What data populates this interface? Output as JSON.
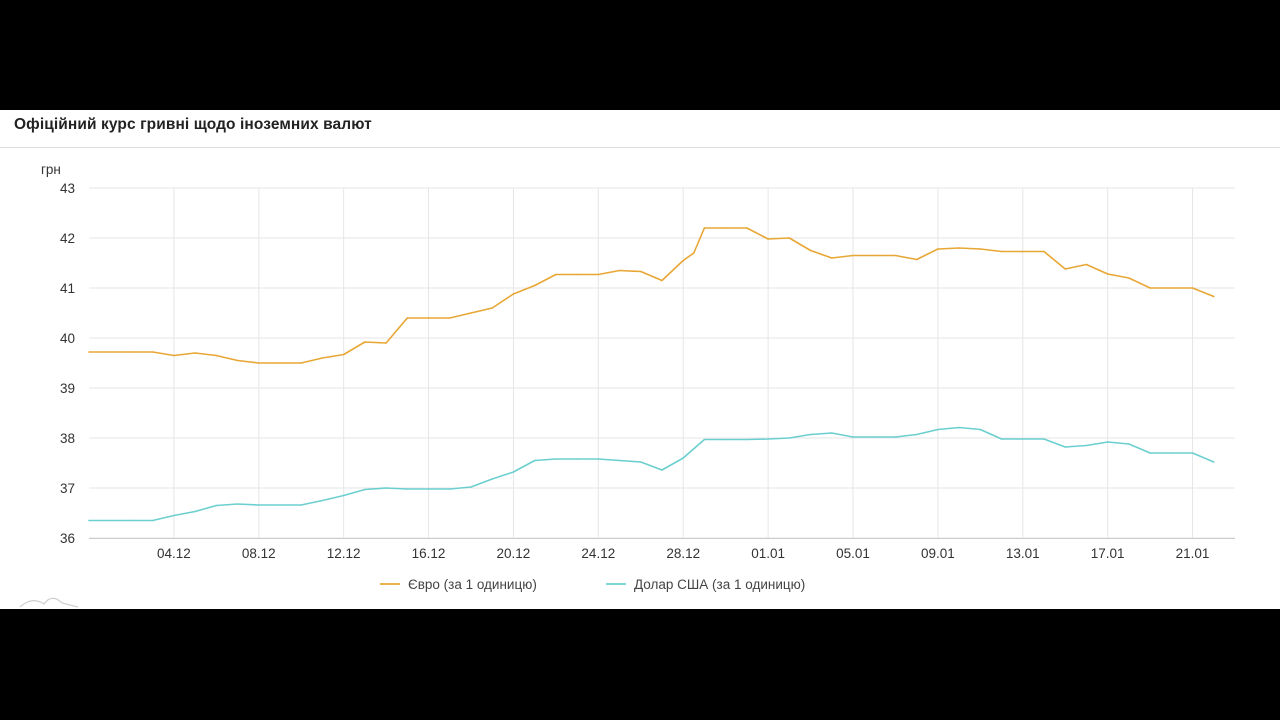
{
  "chart_data": {
    "type": "line",
    "title": "Офіційний курс гривні щодо іноземних валют",
    "ylabel": "грн",
    "xlabel": "",
    "ylim": [
      36,
      43
    ],
    "yticks": [
      36,
      37,
      38,
      39,
      40,
      41,
      42,
      43
    ],
    "xlim": [
      "2020-11-30",
      "2021-01-23"
    ],
    "xticks": [
      {
        "date": "2020-12-04",
        "label": "04.12"
      },
      {
        "date": "2020-12-08",
        "label": "08.12"
      },
      {
        "date": "2020-12-12",
        "label": "12.12"
      },
      {
        "date": "2020-12-16",
        "label": "16.12"
      },
      {
        "date": "2020-12-20",
        "label": "20.12"
      },
      {
        "date": "2020-12-24",
        "label": "24.12"
      },
      {
        "date": "2020-12-28",
        "label": "28.12"
      },
      {
        "date": "2021-01-01",
        "label": "01.01"
      },
      {
        "date": "2021-01-05",
        "label": "05.01"
      },
      {
        "date": "2021-01-09",
        "label": "09.01"
      },
      {
        "date": "2021-01-13",
        "label": "13.01"
      },
      {
        "date": "2021-01-17",
        "label": "17.01"
      },
      {
        "date": "2021-01-21",
        "label": "21.01"
      }
    ],
    "grid": true,
    "legend_position": "bottom",
    "series": [
      {
        "name": "Євро (за 1 одиницю)",
        "color": "#e8a735",
        "points": [
          [
            "2020-11-30",
            39.72
          ],
          [
            "2020-12-02",
            39.72
          ],
          [
            "2020-12-03",
            39.72
          ],
          [
            "2020-12-04",
            39.65
          ],
          [
            "2020-12-05",
            39.7
          ],
          [
            "2020-12-06",
            39.65
          ],
          [
            "2020-12-07",
            39.55
          ],
          [
            "2020-12-08",
            39.5
          ],
          [
            "2020-12-09",
            39.5
          ],
          [
            "2020-12-10",
            39.5
          ],
          [
            "2020-12-11",
            39.6
          ],
          [
            "2020-12-12",
            39.67
          ],
          [
            "2020-12-13",
            39.92
          ],
          [
            "2020-12-14",
            39.9
          ],
          [
            "2020-12-15",
            40.4
          ],
          [
            "2020-12-16",
            40.4
          ],
          [
            "2020-12-17",
            40.4
          ],
          [
            "2020-12-18",
            40.5
          ],
          [
            "2020-12-19",
            40.6
          ],
          [
            "2020-12-20",
            40.88
          ],
          [
            "2020-12-21",
            41.05
          ],
          [
            "2020-12-22",
            41.27
          ],
          [
            "2020-12-23",
            41.27
          ],
          [
            "2020-12-24",
            41.27
          ],
          [
            "2020-12-25",
            41.35
          ],
          [
            "2020-12-26",
            41.33
          ],
          [
            "2020-12-27",
            41.15
          ],
          [
            "2020-12-28",
            41.55
          ],
          [
            "2020-12-28.5",
            41.7
          ],
          [
            "2020-12-29",
            42.2
          ],
          [
            "2020-12-30",
            42.2
          ],
          [
            "2020-12-31",
            42.2
          ],
          [
            "2021-01-01",
            41.98
          ],
          [
            "2021-01-02",
            42.0
          ],
          [
            "2021-01-03",
            41.75
          ],
          [
            "2021-01-04",
            41.6
          ],
          [
            "2021-01-05",
            41.65
          ],
          [
            "2021-01-06",
            41.65
          ],
          [
            "2021-01-07",
            41.65
          ],
          [
            "2021-01-08",
            41.57
          ],
          [
            "2021-01-09",
            41.78
          ],
          [
            "2021-01-10",
            41.8
          ],
          [
            "2021-01-11",
            41.78
          ],
          [
            "2021-01-12",
            41.73
          ],
          [
            "2021-01-13",
            41.73
          ],
          [
            "2021-01-14",
            41.73
          ],
          [
            "2021-01-15",
            41.38
          ],
          [
            "2021-01-16",
            41.47
          ],
          [
            "2021-01-17",
            41.28
          ],
          [
            "2021-01-18",
            41.2
          ],
          [
            "2021-01-19",
            41.0
          ],
          [
            "2021-01-20",
            41.0
          ],
          [
            "2021-01-21",
            41.0
          ],
          [
            "2021-01-22",
            40.83
          ]
        ]
      },
      {
        "name": "Долар США (за 1 одиницю)",
        "color": "#6ccfcf",
        "points": [
          [
            "2020-11-30",
            36.35
          ],
          [
            "2020-12-02",
            36.35
          ],
          [
            "2020-12-03",
            36.35
          ],
          [
            "2020-12-04",
            36.45
          ],
          [
            "2020-12-05",
            36.53
          ],
          [
            "2020-12-06",
            36.65
          ],
          [
            "2020-12-07",
            36.68
          ],
          [
            "2020-12-08",
            36.66
          ],
          [
            "2020-12-09",
            36.66
          ],
          [
            "2020-12-10",
            36.66
          ],
          [
            "2020-12-11",
            36.75
          ],
          [
            "2020-12-12",
            36.85
          ],
          [
            "2020-12-13",
            36.97
          ],
          [
            "2020-12-14",
            37.0
          ],
          [
            "2020-12-15",
            36.98
          ],
          [
            "2020-12-16",
            36.98
          ],
          [
            "2020-12-17",
            36.98
          ],
          [
            "2020-12-18",
            37.02
          ],
          [
            "2020-12-19",
            37.18
          ],
          [
            "2020-12-20",
            37.32
          ],
          [
            "2020-12-21",
            37.55
          ],
          [
            "2020-12-22",
            37.58
          ],
          [
            "2020-12-23",
            37.58
          ],
          [
            "2020-12-24",
            37.58
          ],
          [
            "2020-12-25",
            37.55
          ],
          [
            "2020-12-26",
            37.52
          ],
          [
            "2020-12-27",
            37.36
          ],
          [
            "2020-12-28",
            37.6
          ],
          [
            "2020-12-29",
            37.97
          ],
          [
            "2020-12-30",
            37.97
          ],
          [
            "2020-12-31",
            37.97
          ],
          [
            "2021-01-01",
            37.98
          ],
          [
            "2021-01-02",
            38.0
          ],
          [
            "2021-01-03",
            38.07
          ],
          [
            "2021-01-04",
            38.1
          ],
          [
            "2021-01-05",
            38.02
          ],
          [
            "2021-01-06",
            38.02
          ],
          [
            "2021-01-07",
            38.02
          ],
          [
            "2021-01-08",
            38.07
          ],
          [
            "2021-01-09",
            38.17
          ],
          [
            "2021-01-10",
            38.21
          ],
          [
            "2021-01-11",
            38.17
          ],
          [
            "2021-01-12",
            37.98
          ],
          [
            "2021-01-13",
            37.98
          ],
          [
            "2021-01-14",
            37.98
          ],
          [
            "2021-01-15",
            37.82
          ],
          [
            "2021-01-16",
            37.85
          ],
          [
            "2021-01-17",
            37.92
          ],
          [
            "2021-01-18",
            37.88
          ],
          [
            "2021-01-19",
            37.7
          ],
          [
            "2021-01-20",
            37.7
          ],
          [
            "2021-01-21",
            37.7
          ],
          [
            "2021-01-22",
            37.52
          ]
        ]
      }
    ]
  }
}
